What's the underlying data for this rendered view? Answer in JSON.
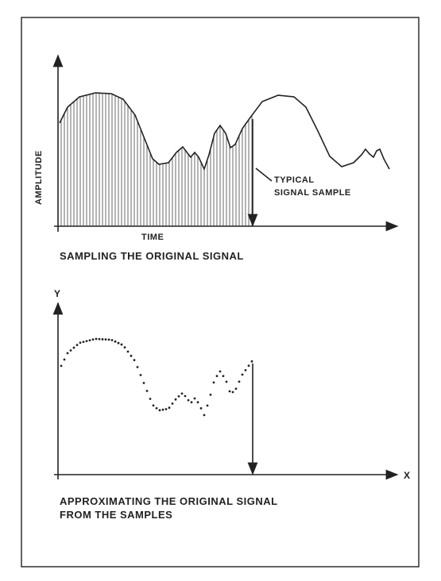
{
  "top_panel": {
    "y_label": "AMPLITUDE",
    "x_label": "TIME",
    "annotation": [
      "TYPICAL",
      "SIGNAL SAMPLE"
    ],
    "caption": "SAMPLING THE ORIGINAL SIGNAL"
  },
  "bottom_panel": {
    "y_label": "Y",
    "x_label": "X",
    "caption": [
      "APPROXIMATING THE ORIGINAL SIGNAL",
      "FROM THE SAMPLES"
    ]
  }
}
